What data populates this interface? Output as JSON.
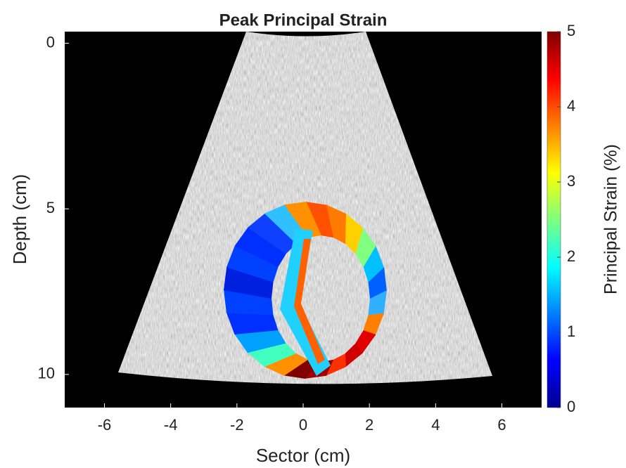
{
  "chart_data": {
    "type": "image",
    "title": "Peak Principal Strain",
    "x_label": "Sector (cm)",
    "y_label": "Depth (cm)",
    "xlim": [
      -7.2,
      7.2
    ],
    "xticks": [
      -6,
      -4,
      -2,
      0,
      2,
      4,
      6
    ],
    "ylim": [
      -0.35,
      11
    ],
    "yticks": [
      0,
      5,
      10
    ],
    "y_reversed": true,
    "colorbar": {
      "label": "Principal Strain (%)",
      "colormap": "jet",
      "lim": [
        0,
        5
      ],
      "ticks": [
        0,
        1,
        2,
        3,
        4,
        5
      ]
    }
  }
}
